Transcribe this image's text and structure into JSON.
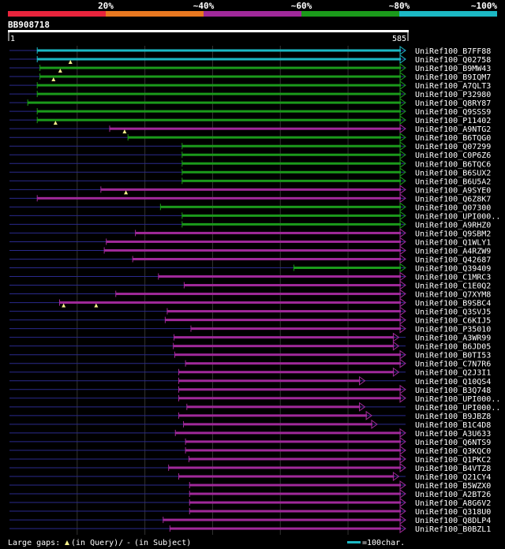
{
  "chart_data": {
    "type": "alignment",
    "query_id": "BB908718",
    "query_start": "1",
    "query_end": "585",
    "query_length": 585,
    "identity_bins": [
      {
        "label": "",
        "color": "#e8243c"
      },
      {
        "label": "20%",
        "color": "#e87820"
      },
      {
        "label": "~40%",
        "color": "#a0299a"
      },
      {
        "label": "~60%",
        "color": "#1b9a1b"
      },
      {
        "label": "~80%",
        "color": "#1cb8c4"
      },
      {
        "label": "~100%",
        "color": ""
      }
    ],
    "colors": {
      "c100": "#1cb8c4",
      "c80": "#1b9a1b",
      "c60": "#a0299a",
      "gap": "#2a2a8c",
      "dashed": "#7a1a75",
      "grid": "#333333"
    },
    "gridlines": [
      100,
      200,
      300,
      400,
      500
    ],
    "hits": [
      {
        "name": "UniRef100_B7FF88",
        "cls": "c100",
        "s": 41,
        "e": 585
      },
      {
        "name": "UniRef100_Q02758",
        "cls": "c100",
        "s": 41,
        "e": 585,
        "markers": [
          90
        ]
      },
      {
        "name": "UniRef100_B9MW43",
        "cls": "c80",
        "s": 45,
        "e": 585,
        "markers": [
          75
        ]
      },
      {
        "name": "UniRef100_B9IQM7",
        "cls": "c80",
        "s": 45,
        "e": 585,
        "markers": [
          65
        ]
      },
      {
        "name": "UniRef100_A7QLT3",
        "cls": "c80",
        "s": 41,
        "e": 585
      },
      {
        "name": "UniRef100_P32980",
        "cls": "c80",
        "s": 41,
        "e": 585
      },
      {
        "name": "UniRef100_Q8RY87",
        "cls": "c80",
        "s": 27,
        "e": 585
      },
      {
        "name": "UniRef100_Q9SSS9",
        "cls": "c80",
        "s": 41,
        "e": 585
      },
      {
        "name": "UniRef100_P11402",
        "cls": "c80",
        "s": 41,
        "e": 585,
        "markers": [
          68
        ]
      },
      {
        "name": "UniRef100_A9NTG2",
        "cls": "c60",
        "s": 148,
        "e": 585,
        "markers": [
          170
        ]
      },
      {
        "name": "UniRef100_B6TQG0",
        "cls": "c80",
        "s": 175,
        "e": 585
      },
      {
        "name": "UniRef100_Q07299",
        "cls": "c80",
        "s": 255,
        "e": 585
      },
      {
        "name": "UniRef100_C0P6Z6",
        "cls": "c80",
        "s": 255,
        "e": 585
      },
      {
        "name": "UniRef100_B6TQC6",
        "cls": "c80",
        "s": 255,
        "e": 585
      },
      {
        "name": "UniRef100_B6SUX2",
        "cls": "c80",
        "s": 255,
        "e": 585
      },
      {
        "name": "UniRef100_B6U5A2",
        "cls": "c80",
        "s": 255,
        "e": 585
      },
      {
        "name": "UniRef100_A9SYE0",
        "cls": "c60",
        "s": 135,
        "e": 585,
        "markers": [
          172
        ]
      },
      {
        "name": "UniRef100_Q6Z8K7",
        "cls": "c60",
        "s": 41,
        "e": 585
      },
      {
        "name": "UniRef100_Q07300",
        "cls": "c80",
        "s": 223,
        "e": 585
      },
      {
        "name": "UniRef100_UPI000..",
        "cls": "c80",
        "s": 255,
        "e": 585
      },
      {
        "name": "UniRef100_A9RHZ0",
        "cls": "c80",
        "s": 255,
        "e": 585
      },
      {
        "name": "UniRef100_Q9SBM2",
        "cls": "c60",
        "s": 186,
        "e": 585
      },
      {
        "name": "UniRef100_Q1WLY1",
        "cls": "c60",
        "s": 143,
        "e": 585
      },
      {
        "name": "UniRef100_A4RZW9",
        "cls": "c60",
        "s": 140,
        "e": 585
      },
      {
        "name": "UniRef100_Q42687",
        "cls": "c60",
        "s": 182,
        "e": 585
      },
      {
        "name": "UniRef100_Q39409",
        "cls": "c80",
        "s": 420,
        "e": 585
      },
      {
        "name": "UniRef100_C1MRC3",
        "cls": "c60",
        "s": 220,
        "e": 585
      },
      {
        "name": "UniRef100_C1E0Q2",
        "cls": "c60",
        "s": 258,
        "e": 585
      },
      {
        "name": "UniRef100_Q7XYM8",
        "cls": "c60",
        "s": 157,
        "e": 585
      },
      {
        "name": "UniRef100_B9SBC4",
        "cls": "c60",
        "s": 74,
        "e": 585,
        "markers": [
          80,
          128
        ]
      },
      {
        "name": "UniRef100_Q3SVJ5",
        "cls": "c60",
        "s": 233,
        "e": 585
      },
      {
        "name": "UniRef100_C6KIJ5",
        "cls": "c60",
        "s": 230,
        "e": 585
      },
      {
        "name": "UniRef100_P35010",
        "cls": "c60",
        "s": 268,
        "e": 585
      },
      {
        "name": "UniRef100_A3WR99",
        "cls": "c60",
        "s": 243,
        "e": 575
      },
      {
        "name": "UniRef100_B6JD05",
        "cls": "c60",
        "s": 242,
        "e": 575
      },
      {
        "name": "UniRef100_B0TI53",
        "cls": "c60",
        "s": 244,
        "e": 585
      },
      {
        "name": "UniRef100_C7N7R6",
        "cls": "c60",
        "s": 260,
        "e": 585
      },
      {
        "name": "UniRef100_Q2J3I1",
        "cls": "c60",
        "s": 250,
        "e": 575
      },
      {
        "name": "UniRef100_Q10QS4",
        "cls": "c60",
        "s": 250,
        "e": 525
      },
      {
        "name": "UniRef100_B3Q748",
        "cls": "c60",
        "s": 250,
        "e": 585
      },
      {
        "name": "UniRef100_UPI000..",
        "cls": "c60",
        "s": 250,
        "e": 585
      },
      {
        "name": "UniRef100_UPI000..",
        "cls": "c60",
        "s": 262,
        "e": 525
      },
      {
        "name": "UniRef100_B9JBZ8",
        "cls": "c60",
        "s": 250,
        "e": 535
      },
      {
        "name": "UniRef100_B1C4D8",
        "cls": "c60",
        "s": 257,
        "e": 543
      },
      {
        "name": "UniRef100_A3U633",
        "cls": "c60",
        "s": 245,
        "e": 585
      },
      {
        "name": "UniRef100_Q6NTS9",
        "cls": "c60",
        "s": 260,
        "e": 585
      },
      {
        "name": "UniRef100_Q3KQC0",
        "cls": "c60",
        "s": 260,
        "e": 585
      },
      {
        "name": "UniRef100_Q1PKC2",
        "cls": "c60",
        "s": 265,
        "e": 585
      },
      {
        "name": "UniRef100_B4VTZ8",
        "cls": "c60",
        "s": 235,
        "e": 585
      },
      {
        "name": "UniRef100_Q21CY4",
        "cls": "c60",
        "s": 250,
        "e": 575
      },
      {
        "name": "UniRef100_B5WZX0",
        "cls": "c60",
        "s": 266,
        "e": 585
      },
      {
        "name": "UniRef100_A2BT26",
        "cls": "c60",
        "s": 266,
        "e": 585
      },
      {
        "name": "UniRef100_A8G6V2",
        "cls": "c60",
        "s": 266,
        "e": 585
      },
      {
        "name": "UniRef100_Q318U0",
        "cls": "c60",
        "s": 266,
        "e": 585
      },
      {
        "name": "UniRef100_Q8DLP4",
        "cls": "c60",
        "s": 227,
        "e": 585
      },
      {
        "name": "UniRef100_B0BZL1",
        "cls": "c60",
        "s": 237,
        "e": 585
      }
    ],
    "footer": {
      "large_gaps_label": "Large gaps:",
      "in_query_label": "(in Query)/",
      "dash_glyph": "-",
      "in_subject_label": "(in Subject)",
      "scale_label": "=100char."
    }
  }
}
